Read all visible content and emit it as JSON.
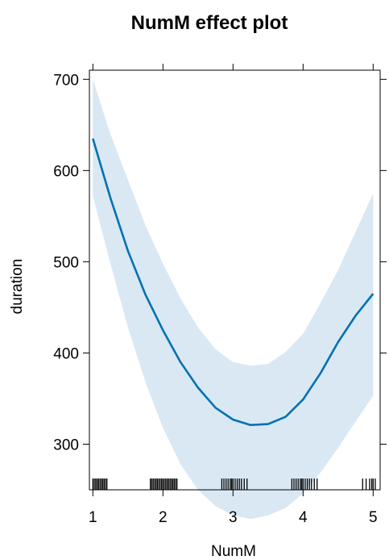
{
  "chart_data": {
    "type": "line",
    "title": "NumM effect plot",
    "xlabel": "NumM",
    "ylabel": "duration",
    "xlim": [
      0.95,
      5.1
    ],
    "ylim": [
      250,
      710
    ],
    "x_ticks": [
      1,
      2,
      3,
      4,
      5
    ],
    "x_tick_labels": [
      "1",
      "2",
      "3",
      "4",
      "5"
    ],
    "y_ticks": [
      300,
      400,
      500,
      600,
      700
    ],
    "y_tick_labels": [
      "300",
      "400",
      "500",
      "600",
      "700"
    ],
    "grid": false,
    "legend": "none",
    "colors": {
      "line": "#0072B2",
      "band": "#DAE8F4",
      "rug": "#000000",
      "frame": "#000000"
    },
    "series": [
      {
        "x": [
          1.0,
          1.25,
          1.5,
          1.75,
          2.0,
          2.25,
          2.5,
          2.75,
          3.0,
          3.25,
          3.5,
          3.75,
          4.0,
          4.25,
          4.5,
          4.75,
          5.0
        ],
        "y": [
          635,
          570,
          512,
          464,
          425,
          390,
          362,
          340,
          327,
          321,
          322,
          330,
          349,
          378,
          412,
          441,
          465
        ],
        "lower": [
          572,
          498,
          428,
          368,
          318,
          278,
          250,
          232,
          222,
          218,
          222,
          230,
          246,
          269,
          296,
          325,
          353
        ],
        "upper": [
          700,
          640,
          590,
          540,
          498,
          460,
          428,
          404,
          390,
          386,
          388,
          401,
          421,
          455,
          491,
          533,
          575
        ]
      }
    ],
    "rug": [
      1.0,
      1.02,
      1.04,
      1.06,
      1.08,
      1.1,
      1.12,
      1.14,
      1.16,
      1.18,
      1.2,
      1.82,
      1.84,
      1.86,
      1.88,
      1.9,
      1.92,
      1.94,
      1.96,
      1.98,
      2.0,
      2.02,
      2.04,
      2.06,
      2.08,
      2.1,
      2.12,
      2.14,
      2.16,
      2.18,
      2.2,
      2.84,
      2.87,
      2.9,
      2.93,
      2.96,
      2.98,
      3.0,
      3.03,
      3.06,
      3.09,
      3.12,
      3.16,
      3.2,
      3.84,
      3.87,
      3.9,
      3.93,
      3.96,
      3.98,
      4.0,
      4.03,
      4.06,
      4.09,
      4.12,
      4.16,
      4.2,
      4.85,
      4.9,
      4.95,
      4.98,
      5.0,
      5.03
    ]
  }
}
